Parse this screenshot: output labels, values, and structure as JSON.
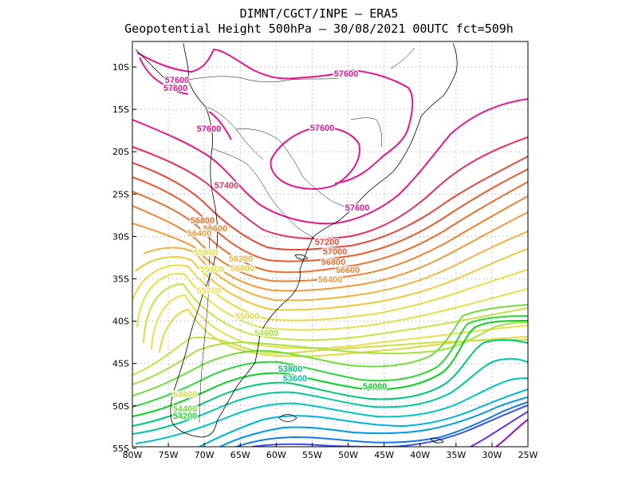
{
  "title": {
    "line1": "DIMNT/CGCT/INPE –  ERA5",
    "line2": "Geopotential Height 500hPa –  30/08/2021 00UTC fct=509h"
  },
  "axes": {
    "lon_labels": [
      "80W",
      "75W",
      "70W",
      "65W",
      "60W",
      "55W",
      "50W",
      "45W",
      "40W",
      "35W",
      "30W",
      "25W"
    ],
    "lat_labels": [
      "10S",
      "15S",
      "20S",
      "25S",
      "30S",
      "35S",
      "40S",
      "45S",
      "50S",
      "55S"
    ]
  },
  "colors": {
    "57600": "#e8168c",
    "57400": "#e83060",
    "57200": "#e84a3a",
    "57000": "#ea5c30",
    "56800": "#ec6e2c",
    "56600": "#ee8432",
    "56400": "#f09a38",
    "56200": "#f0b43c",
    "56000": "#eec83c",
    "55800": "#e8dc44",
    "55600": "#dce44a",
    "55400": "#c4e444",
    "55200": "#e8e050",
    "55000": "#dcdc40",
    "54800": "#cce040",
    "54600": "#a8e040",
    "54400": "#6ede3a",
    "54200": "#2ed63a",
    "54000": "#0ad020",
    "53800": "#00c87a",
    "53600": "#00c8a0",
    "53400": "#00c4c0",
    "53200": "#00b4d8",
    "53000": "#0098e0",
    "52800": "#1478e6",
    "52600": "#3c50e6",
    "52400": "#6a2ee0",
    "52200": "#9a10c8"
  },
  "contour_labels": [
    {
      "text": "57600",
      "level": "57600"
    },
    {
      "text": "57600",
      "level": "57600"
    },
    {
      "text": "57600",
      "level": "57600"
    },
    {
      "text": "57600",
      "level": "57600"
    },
    {
      "text": "57600",
      "level": "57600"
    },
    {
      "text": "57600",
      "level": "57600"
    },
    {
      "text": "57400",
      "level": "57400"
    },
    {
      "text": "57200",
      "level": "57200"
    },
    {
      "text": "57000",
      "level": "57000"
    },
    {
      "text": "56800",
      "level": "56800"
    },
    {
      "text": "56800",
      "level": "56800"
    },
    {
      "text": "56600",
      "level": "56600"
    },
    {
      "text": "56600",
      "level": "56600"
    },
    {
      "text": "56400",
      "level": "56400"
    },
    {
      "text": "56400",
      "level": "56400"
    },
    {
      "text": "56200",
      "level": "56200"
    },
    {
      "text": "56000",
      "level": "56000"
    },
    {
      "text": "55800",
      "level": "55800"
    },
    {
      "text": "55600",
      "level": "55600"
    },
    {
      "text": "55200",
      "level": "55200"
    },
    {
      "text": "55000",
      "level": "55000"
    },
    {
      "text": "54800",
      "level": "54800"
    },
    {
      "text": "54600",
      "level": "54600"
    },
    {
      "text": "54400",
      "level": "54400"
    },
    {
      "text": "54200",
      "level": "54200"
    },
    {
      "text": "54000",
      "level": "54000"
    },
    {
      "text": "53800",
      "level": "53800"
    },
    {
      "text": "53600",
      "level": "53600"
    }
  ]
}
